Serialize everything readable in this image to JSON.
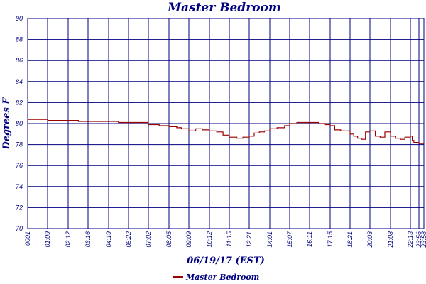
{
  "chart_data": {
    "type": "line",
    "title": "Master Bedroom",
    "xlabel": "06/19/17 (EST)",
    "ylabel": "Degrees F",
    "ylim": [
      70,
      90
    ],
    "yticks": [
      "90",
      "88",
      "86",
      "84",
      "82",
      "80",
      "78",
      "76",
      "74",
      "72",
      "70"
    ],
    "xticks": [
      "0001",
      "01:09",
      "02:12",
      "03:16",
      "04:19",
      "05:22",
      "07:02",
      "08:05",
      "09:09",
      "10:12",
      "11:15",
      "12:21",
      "14:01",
      "15:07",
      "16:11",
      "17:15",
      "18:21",
      "20:03",
      "21:08",
      "22:13",
      "23:56",
      "23:58"
    ],
    "grid": true,
    "legend_position": "bottom",
    "colors": {
      "series": "#990000",
      "grid": "#000080",
      "text": "#000080"
    },
    "series": [
      {
        "name": "Master Bedroom",
        "x": [
          "00:01",
          "00:30",
          "01:00",
          "01:09",
          "01:40",
          "02:12",
          "02:45",
          "03:16",
          "03:45",
          "04:19",
          "04:50",
          "05:22",
          "05:45",
          "06:10",
          "06:30",
          "07:02",
          "07:35",
          "08:05",
          "08:30",
          "08:45",
          "09:09",
          "09:30",
          "09:50",
          "10:12",
          "10:35",
          "10:55",
          "11:15",
          "11:40",
          "12:00",
          "12:21",
          "12:45",
          "13:10",
          "13:35",
          "14:01",
          "14:25",
          "14:50",
          "15:07",
          "15:30",
          "15:55",
          "16:11",
          "16:40",
          "17:00",
          "17:15",
          "17:30",
          "17:50",
          "18:21",
          "18:40",
          "19:00",
          "19:20",
          "19:40",
          "20:03",
          "20:20",
          "20:35",
          "20:50",
          "21:08",
          "21:25",
          "21:40",
          "21:55",
          "22:13",
          "22:35",
          "22:55",
          "23:15",
          "23:35",
          "23:56",
          "23:58"
        ],
        "y": [
          80.4,
          80.4,
          80.4,
          80.3,
          80.3,
          80.3,
          80.2,
          80.2,
          80.2,
          80.2,
          80.1,
          80.1,
          80.1,
          80.1,
          80.1,
          79.9,
          79.8,
          79.7,
          79.6,
          79.5,
          79.3,
          79.5,
          79.4,
          79.3,
          79.2,
          78.9,
          78.7,
          78.6,
          78.7,
          78.8,
          79.1,
          79.2,
          79.3,
          79.5,
          79.6,
          79.8,
          80.0,
          80.1,
          80.1,
          80.1,
          80.0,
          79.9,
          79.8,
          79.4,
          79.3,
          79.0,
          78.8,
          78.6,
          78.5,
          79.2,
          79.3,
          78.8,
          78.7,
          79.2,
          78.8,
          78.6,
          78.5,
          78.7,
          78.8,
          78.4,
          78.2,
          78.2,
          78.2,
          78.1,
          78.1
        ]
      }
    ]
  }
}
